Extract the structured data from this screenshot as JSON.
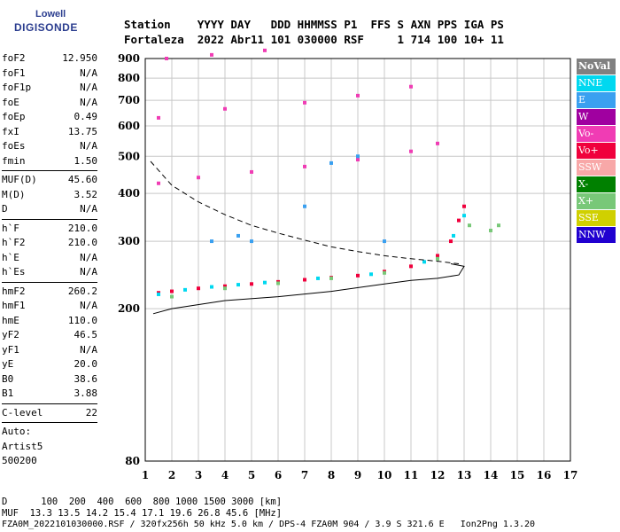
{
  "logo": {
    "line1": "Lowell",
    "line2": "DIGISONDE"
  },
  "header": {
    "line1": "Station    YYYY DAY   DDD HHMMSS P1  FFS S AXN PPS IGA PS",
    "line2": "Fortaleza  2022 Abr11 101 030000 RSF     1 714 100 10+ 11"
  },
  "params": [
    {
      "label": "foF2",
      "value": "12.950"
    },
    {
      "label": "foF1",
      "value": "N/A"
    },
    {
      "label": "foF1p",
      "value": "N/A"
    },
    {
      "label": "foE",
      "value": "N/A"
    },
    {
      "label": "foEp",
      "value": "0.49"
    },
    {
      "label": "fxI",
      "value": "13.75"
    },
    {
      "label": "foEs",
      "value": "N/A"
    },
    {
      "label": "fmin",
      "value": "1.50"
    },
    {
      "sep": true
    },
    {
      "label": "MUF(D)",
      "value": "45.60"
    },
    {
      "label": "M(D)",
      "value": "3.52"
    },
    {
      "label": "D",
      "value": "N/A"
    },
    {
      "sep": true
    },
    {
      "label": "h`F",
      "value": "210.0"
    },
    {
      "label": "h`F2",
      "value": "210.0"
    },
    {
      "label": "h`E",
      "value": "N/A"
    },
    {
      "label": "h`Es",
      "value": "N/A"
    },
    {
      "sep": true
    },
    {
      "label": "hmF2",
      "value": "260.2"
    },
    {
      "label": "hmF1",
      "value": "N/A"
    },
    {
      "label": "hmE",
      "value": "110.0"
    },
    {
      "label": "yF2",
      "value": "46.5"
    },
    {
      "label": "yF1",
      "value": "N/A"
    },
    {
      "label": "yE",
      "value": "20.0"
    },
    {
      "label": "B0",
      "value": "38.6"
    },
    {
      "label": "B1",
      "value": "3.88"
    },
    {
      "sep": true
    },
    {
      "label": "C-level",
      "value": "22"
    },
    {
      "sep": true
    },
    {
      "label": "Auto:",
      "value": ""
    },
    {
      "label": "Artist5",
      "value": ""
    },
    {
      "label": "500200",
      "value": ""
    }
  ],
  "legend": [
    {
      "label": "NoVal",
      "color": "#808080"
    },
    {
      "label": "NNE",
      "color": "#00d8f0"
    },
    {
      "label": "E",
      "color": "#3aa0f0"
    },
    {
      "label": "W",
      "color": "#a000a0"
    },
    {
      "label": "Vo-",
      "color": "#f03cb4"
    },
    {
      "label": "Vo+",
      "color": "#f0003c"
    },
    {
      "label": "SSW",
      "color": "#f8a8a8"
    },
    {
      "label": "X-",
      "color": "#008000"
    },
    {
      "label": "X+",
      "color": "#78c878"
    },
    {
      "label": "SSE",
      "color": "#d0d000"
    },
    {
      "label": "NNW",
      "color": "#2000d0"
    }
  ],
  "footer": {
    "line1": "D      100  200  400  600  800 1000 1500 3000 [km]",
    "line2": "MUF  13.3 13.5 14.2 15.4 17.1 19.6 26.8 45.6 [MHz]",
    "line3": "FZA0M_2022101030000.RSF / 320fx256h 50 kHz 5.0 km / DPS-4 FZA0M 904 / 3.9 S 321.6 E   Ion2Png 1.3.20"
  },
  "chart_data": {
    "type": "scatter",
    "title": "",
    "xlabel": "",
    "ylabel": "",
    "xlim": [
      1,
      17
    ],
    "ylim": [
      80,
      900
    ],
    "x_ticks": [
      1,
      2,
      3,
      4,
      5,
      6,
      7,
      8,
      9,
      10,
      11,
      12,
      13,
      14,
      15,
      16,
      17
    ],
    "y_ticks": [
      80,
      200,
      300,
      400,
      500,
      600,
      700,
      800,
      900
    ],
    "y_scale": "log",
    "grid": true,
    "series": [
      {
        "name": "Vo+",
        "color": "#f0003c",
        "points": [
          [
            1.5,
            220
          ],
          [
            2,
            222
          ],
          [
            3,
            226
          ],
          [
            4,
            229
          ],
          [
            5,
            232
          ],
          [
            6,
            235
          ],
          [
            7,
            238
          ],
          [
            8,
            241
          ],
          [
            9,
            244
          ],
          [
            10,
            250
          ],
          [
            11,
            258
          ],
          [
            12,
            275
          ],
          [
            12.5,
            300
          ],
          [
            12.8,
            340
          ],
          [
            13,
            370
          ]
        ]
      },
      {
        "name": "NNE",
        "color": "#00d8f0",
        "points": [
          [
            1.5,
            218
          ],
          [
            2.5,
            224
          ],
          [
            3.5,
            228
          ],
          [
            4.5,
            231
          ],
          [
            5.5,
            234
          ],
          [
            7.5,
            240
          ],
          [
            9.5,
            246
          ],
          [
            11.5,
            265
          ],
          [
            12.6,
            310
          ],
          [
            13,
            350
          ]
        ]
      },
      {
        "name": "X+",
        "color": "#78c878",
        "points": [
          [
            2,
            215
          ],
          [
            4,
            226
          ],
          [
            6,
            233
          ],
          [
            8,
            240
          ],
          [
            10,
            248
          ],
          [
            12,
            270
          ],
          [
            13.2,
            330
          ],
          [
            14,
            320
          ],
          [
            14.3,
            330
          ]
        ]
      },
      {
        "name": "Vo-",
        "color": "#f03cb4",
        "points": [
          [
            1.5,
            425
          ],
          [
            3,
            440
          ],
          [
            5,
            455
          ],
          [
            7,
            470
          ],
          [
            9,
            490
          ],
          [
            11,
            515
          ],
          [
            12,
            540
          ],
          [
            1.5,
            630
          ],
          [
            4,
            665
          ],
          [
            7,
            690
          ],
          [
            9,
            720
          ],
          [
            11,
            760
          ],
          [
            1.8,
            900
          ],
          [
            3.5,
            920
          ],
          [
            5.5,
            945
          ]
        ]
      },
      {
        "name": "E",
        "color": "#3aa0f0",
        "points": [
          [
            3.5,
            300
          ],
          [
            4.5,
            310
          ],
          [
            5,
            300
          ],
          [
            7,
            370
          ],
          [
            8,
            480
          ],
          [
            9,
            500
          ],
          [
            10,
            300
          ]
        ]
      }
    ],
    "curves": [
      {
        "name": "profile",
        "style": "solid",
        "points": [
          [
            1.3,
            194
          ],
          [
            2,
            200
          ],
          [
            4,
            210
          ],
          [
            6,
            215
          ],
          [
            8,
            222
          ],
          [
            10,
            232
          ],
          [
            11,
            237
          ],
          [
            12,
            240
          ],
          [
            12.8,
            245
          ],
          [
            13,
            258
          ],
          [
            12.5,
            262
          ]
        ]
      },
      {
        "name": "muf",
        "style": "dashed",
        "points": [
          [
            1.2,
            485
          ],
          [
            2,
            420
          ],
          [
            3,
            380
          ],
          [
            4,
            352
          ],
          [
            5,
            330
          ],
          [
            6,
            315
          ],
          [
            7,
            302
          ],
          [
            8,
            290
          ],
          [
            9,
            282
          ],
          [
            10,
            275
          ],
          [
            11,
            270
          ],
          [
            12,
            266
          ],
          [
            12.8,
            262
          ]
        ]
      }
    ]
  }
}
